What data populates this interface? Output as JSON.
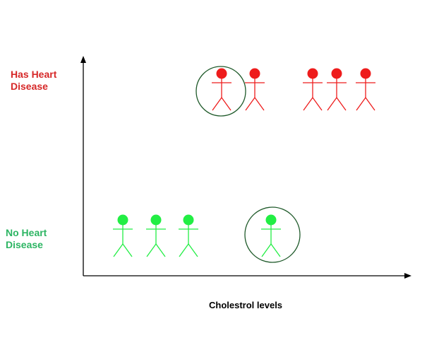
{
  "classes": {
    "positive": {
      "line1": "Has Heart",
      "line2": "Disease",
      "color": "#d62828"
    },
    "negative": {
      "line1": "No Heart",
      "line2": "Disease",
      "color": "#2db563"
    }
  },
  "figure_colors": {
    "positive": "#ee1c1c",
    "negative": "#22ee44",
    "highlight_circle": "#1f5a2a",
    "axis": "#000000"
  },
  "x_axis_label": "Cholestrol levels",
  "people": [
    {
      "class": "positive",
      "highlighted": true
    },
    {
      "class": "positive",
      "highlighted": false
    },
    {
      "class": "positive",
      "highlighted": false
    },
    {
      "class": "positive",
      "highlighted": false
    },
    {
      "class": "positive",
      "highlighted": false
    },
    {
      "class": "negative",
      "highlighted": false
    },
    {
      "class": "negative",
      "highlighted": false
    },
    {
      "class": "negative",
      "highlighted": false
    },
    {
      "class": "negative",
      "highlighted": true
    }
  ]
}
